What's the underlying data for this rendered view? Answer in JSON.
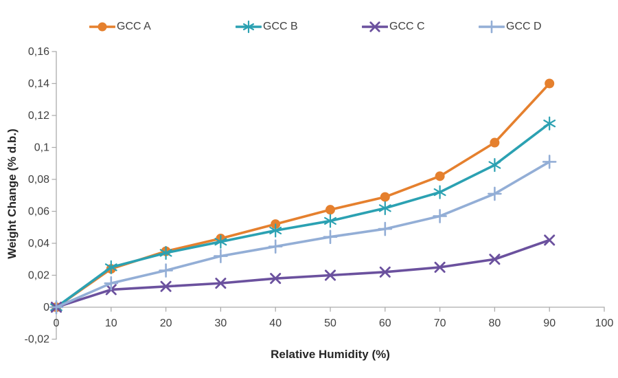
{
  "chart_data": {
    "type": "line",
    "title": "",
    "xlabel": "Relative Humidity (%)",
    "ylabel": "Weight Change (% d.b.)",
    "xlim": [
      0,
      100
    ],
    "ylim": [
      -0.02,
      0.16
    ],
    "grid": false,
    "legend_position": "top",
    "decimal_separator": ",",
    "x": [
      0,
      10,
      20,
      30,
      40,
      50,
      60,
      70,
      80,
      90
    ],
    "series": [
      {
        "name": "GCC A",
        "marker": "circle",
        "color": "#E5802E",
        "values": [
          0,
          0.024,
          0.035,
          0.043,
          0.052,
          0.061,
          0.069,
          0.082,
          0.103,
          0.14
        ]
      },
      {
        "name": "GCC B",
        "marker": "asterisk",
        "color": "#2BA1B2",
        "values": [
          0,
          0.025,
          0.034,
          0.041,
          0.048,
          0.054,
          0.062,
          0.072,
          0.089,
          0.115
        ]
      },
      {
        "name": "GCC C",
        "marker": "x",
        "color": "#6B519E",
        "values": [
          0,
          0.011,
          0.013,
          0.015,
          0.018,
          0.02,
          0.022,
          0.025,
          0.03,
          0.042
        ]
      },
      {
        "name": "GCC D",
        "marker": "plus",
        "color": "#93AED6",
        "values": [
          0,
          0.015,
          0.023,
          0.032,
          0.038,
          0.044,
          0.049,
          0.057,
          0.071,
          0.091
        ]
      }
    ],
    "x_ticks": {
      "values": [
        0,
        10,
        20,
        30,
        40,
        50,
        60,
        70,
        80,
        90,
        100
      ],
      "labels": [
        "0",
        "10",
        "20",
        "30",
        "40",
        "50",
        "60",
        "70",
        "80",
        "90",
        "100"
      ]
    },
    "y_ticks": {
      "values": [
        0.16,
        0.14,
        0.12,
        0.1,
        0.08,
        0.06,
        0.04,
        0.02,
        0,
        -0.02
      ],
      "labels": [
        "0,16",
        "0,14",
        "0,12",
        "0,1",
        "0,08",
        "0,06",
        "0,04",
        "0,02",
        "0",
        "-0,02"
      ]
    },
    "axis_color": "#ACACAC",
    "tick_label_color": "#3F3F3F",
    "axis_title_color": "#262626"
  }
}
